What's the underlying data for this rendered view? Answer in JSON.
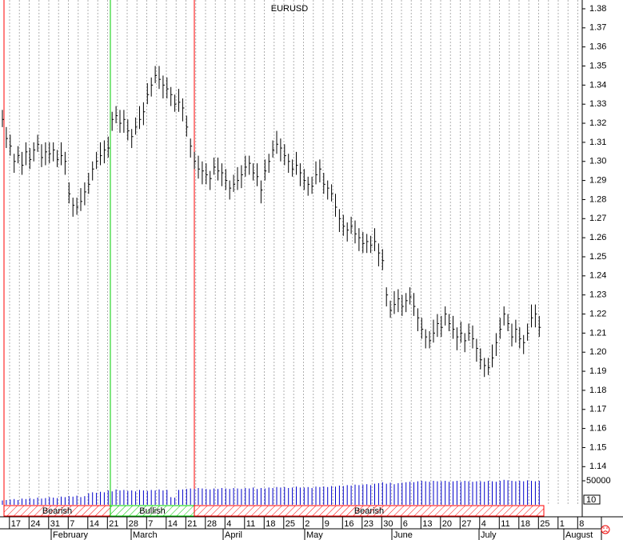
{
  "chart_data": {
    "type": "ohlc",
    "title": "EURUSD",
    "ylim": [
      1.12,
      1.3846
    ],
    "yticks": [
      1.14,
      1.15,
      1.16,
      1.17,
      1.18,
      1.19,
      {
        "value": 1.2,
        "label": "1.20"
      },
      1.21,
      1.22,
      1.23,
      1.24,
      1.25,
      1.26,
      1.27,
      1.28,
      1.29,
      {
        "value": 1.3,
        "label": "1.30"
      },
      1.31,
      1.32,
      1.33,
      1.34,
      1.35,
      1.36,
      1.37,
      1.38
    ],
    "y2lim": [
      0,
      60000
    ],
    "y2ticks": [
      50000
    ],
    "corner_label": "10",
    "bar_color": "#000000",
    "volume_color": "#0000cc",
    "regimes": [
      "Bearish",
      "Bullish",
      "Bearish"
    ],
    "regime_colors": [
      "#ff0000",
      "#00cc00",
      "#ff0000"
    ],
    "months": [
      "February",
      "March",
      "April",
      "May",
      "June",
      "July",
      "August"
    ],
    "categories": [
      null,
      null,
      "17",
      null,
      null,
      null,
      null,
      "24",
      null,
      null,
      null,
      null,
      "31",
      null,
      null,
      null,
      null,
      "7",
      null,
      null,
      null,
      null,
      "14",
      null,
      null,
      null,
      null,
      "21",
      null,
      null,
      null,
      null,
      "28",
      null,
      null,
      null,
      null,
      "7",
      null,
      null,
      null,
      null,
      "14",
      null,
      null,
      null,
      null,
      "21",
      null,
      null,
      null,
      null,
      "28",
      null,
      null,
      null,
      null,
      "4",
      null,
      null,
      null,
      null,
      "11",
      null,
      null,
      null,
      null,
      "18",
      null,
      null,
      null,
      null,
      "25",
      null,
      null,
      null,
      null,
      "2",
      null,
      null,
      null,
      null,
      "9",
      null,
      null,
      null,
      null,
      "16",
      null,
      null,
      null,
      null,
      "23",
      null,
      null,
      null,
      null,
      "30",
      null,
      null,
      null,
      null,
      "6",
      null,
      null,
      null,
      null,
      "13",
      null,
      null,
      null,
      null,
      "20",
      null,
      null,
      null,
      null,
      "27",
      null,
      null,
      null,
      null,
      "4",
      null,
      null,
      null,
      null,
      "11",
      null,
      null,
      null,
      null,
      "18",
      null,
      null,
      null,
      null,
      "25",
      null,
      null,
      null,
      null,
      "1",
      null,
      null,
      null,
      null,
      "8",
      null,
      null,
      null,
      null
    ],
    "high": [
      1.327,
      1.318,
      1.314,
      1.304,
      1.308,
      1.305,
      1.31,
      1.307,
      1.31,
      1.314,
      1.309,
      1.31,
      1.31,
      1.31,
      1.306,
      1.31,
      1.305,
      1.289,
      1.281,
      1.281,
      1.286,
      1.289,
      1.294,
      1.3,
      1.305,
      1.31,
      1.311,
      1.313,
      1.326,
      1.329,
      1.327,
      1.327,
      1.322,
      1.317,
      1.323,
      1.329,
      1.331,
      1.341,
      1.344,
      1.35,
      1.35,
      1.345,
      1.344,
      1.339,
      1.335,
      1.338,
      1.333,
      1.324,
      1.312,
      1.305,
      1.303,
      1.3,
      1.299,
      1.295,
      1.302,
      1.302,
      1.299,
      1.296,
      1.29,
      1.293,
      1.297,
      1.298,
      1.303,
      1.303,
      1.299,
      1.299,
      1.29,
      1.301,
      1.304,
      1.311,
      1.316,
      1.312,
      1.309,
      1.304,
      1.301,
      1.305,
      1.299,
      1.296,
      1.292,
      1.292,
      1.3,
      1.301,
      1.294,
      1.29,
      1.288,
      1.283,
      1.275,
      1.272,
      1.268,
      1.271,
      1.269,
      1.265,
      1.263,
      1.262,
      1.261,
      1.265,
      1.257,
      1.254,
      1.234,
      1.227,
      1.232,
      1.233,
      1.23,
      1.231,
      1.234,
      1.231,
      1.223,
      1.218,
      1.212,
      1.211,
      1.217,
      1.22,
      1.219,
      1.224,
      1.22,
      1.219,
      1.213,
      1.216,
      1.21,
      1.215,
      1.214,
      1.207,
      1.202,
      1.197,
      1.197,
      1.204,
      1.21,
      1.218,
      1.224,
      1.22,
      1.215,
      1.217,
      1.213,
      1.209,
      1.215,
      1.225,
      1.225,
      1.219,
      null,
      null,
      null,
      null,
      null,
      null,
      null,
      null,
      null,
      null,
      null,
      null,
      null,
      null
    ],
    "low": [
      1.318,
      1.307,
      1.303,
      1.294,
      1.299,
      1.293,
      1.298,
      1.296,
      1.3,
      1.305,
      1.297,
      1.298,
      1.299,
      1.3,
      1.297,
      1.298,
      1.293,
      1.278,
      1.271,
      1.272,
      1.274,
      1.277,
      1.283,
      1.29,
      1.296,
      1.298,
      1.299,
      1.302,
      1.316,
      1.32,
      1.315,
      1.315,
      1.311,
      1.307,
      1.314,
      1.317,
      1.319,
      1.33,
      1.334,
      1.341,
      1.338,
      1.333,
      1.333,
      1.329,
      1.326,
      1.326,
      1.321,
      1.313,
      1.302,
      1.296,
      1.291,
      1.288,
      1.288,
      1.285,
      1.293,
      1.29,
      1.287,
      1.285,
      1.28,
      1.284,
      1.285,
      1.286,
      1.292,
      1.293,
      1.29,
      1.287,
      1.278,
      1.29,
      1.294,
      1.302,
      1.304,
      1.3,
      1.298,
      1.294,
      1.292,
      1.293,
      1.287,
      1.285,
      1.282,
      1.283,
      1.288,
      1.289,
      1.283,
      1.28,
      1.279,
      1.271,
      1.263,
      1.261,
      1.258,
      1.262,
      1.257,
      1.253,
      1.252,
      1.252,
      1.252,
      1.253,
      1.245,
      1.243,
      1.224,
      1.218,
      1.22,
      1.221,
      1.219,
      1.221,
      1.225,
      1.219,
      1.211,
      1.207,
      1.202,
      1.202,
      1.205,
      1.208,
      1.208,
      1.214,
      1.211,
      1.207,
      1.201,
      1.205,
      1.2,
      1.206,
      1.202,
      1.195,
      1.191,
      1.187,
      1.188,
      1.192,
      1.198,
      1.207,
      1.214,
      1.211,
      1.203,
      1.205,
      1.202,
      1.199,
      1.206,
      1.213,
      1.213,
      1.208,
      null,
      null,
      null,
      null,
      null,
      null,
      null,
      null,
      null,
      null,
      null,
      null,
      null,
      null
    ],
    "close": [
      1.322,
      1.312,
      1.308,
      1.3,
      1.303,
      1.298,
      1.305,
      1.301,
      1.306,
      1.309,
      1.302,
      1.305,
      1.304,
      1.306,
      1.301,
      1.303,
      1.3,
      1.283,
      1.277,
      1.276,
      1.279,
      1.284,
      1.288,
      1.296,
      1.3,
      1.303,
      1.306,
      1.307,
      1.322,
      1.324,
      1.32,
      1.322,
      1.316,
      1.313,
      1.318,
      1.322,
      1.326,
      1.335,
      1.34,
      1.345,
      1.343,
      1.34,
      1.338,
      1.335,
      1.33,
      1.331,
      1.328,
      1.318,
      1.308,
      1.3,
      1.296,
      1.295,
      1.293,
      1.291,
      1.297,
      1.295,
      1.294,
      1.29,
      1.286,
      1.288,
      1.29,
      1.293,
      1.297,
      1.299,
      1.294,
      1.292,
      1.285,
      1.295,
      1.3,
      1.306,
      1.309,
      1.307,
      1.303,
      1.3,
      1.296,
      1.298,
      1.294,
      1.29,
      1.288,
      1.287,
      1.293,
      1.296,
      1.288,
      1.286,
      1.283,
      1.276,
      1.27,
      1.266,
      1.264,
      1.266,
      1.262,
      1.26,
      1.257,
      1.258,
      1.256,
      1.258,
      1.252,
      1.248,
      1.23,
      1.222,
      1.225,
      1.228,
      1.224,
      1.227,
      1.229,
      1.224,
      1.218,
      1.212,
      1.208,
      1.206,
      1.21,
      1.215,
      1.213,
      1.22,
      1.215,
      1.212,
      1.208,
      1.21,
      1.206,
      1.21,
      1.207,
      1.202,
      1.196,
      1.193,
      1.192,
      1.197,
      1.205,
      1.212,
      1.22,
      1.215,
      1.208,
      1.212,
      1.207,
      1.205,
      1.21,
      1.218,
      1.22,
      1.213,
      null,
      null,
      null,
      null,
      null,
      null,
      null,
      null,
      null,
      null,
      null,
      null,
      null,
      null
    ],
    "volume": [
      9000,
      10000,
      11000,
      12000,
      10000,
      13000,
      12000,
      14000,
      12000,
      15000,
      13000,
      14000,
      16000,
      15000,
      14000,
      17000,
      16000,
      18000,
      17000,
      19000,
      16000,
      18000,
      24000,
      26000,
      25000,
      27000,
      26000,
      30000,
      28000,
      32000,
      30000,
      31000,
      29000,
      30000,
      28000,
      31000,
      30000,
      29000,
      31000,
      30000,
      32000,
      30000,
      31000,
      16000,
      15000,
      31000,
      32000,
      33000,
      34000,
      33000,
      35000,
      34000,
      33000,
      32000,
      34000,
      33000,
      35000,
      34000,
      33000,
      35000,
      34000,
      33000,
      35000,
      34000,
      36000,
      33000,
      35000,
      34000,
      36000,
      35000,
      37000,
      36000,
      37000,
      35000,
      36000,
      38000,
      36000,
      36000,
      37000,
      35000,
      38000,
      37000,
      38000,
      37000,
      39000,
      38000,
      40000,
      39000,
      41000,
      40000,
      42000,
      41000,
      42000,
      43000,
      41000,
      44000,
      45000,
      47000,
      44000,
      46000,
      43000,
      45000,
      46000,
      47000,
      48000,
      47000,
      49000,
      50000,
      49000,
      48000,
      50000,
      49000,
      49000,
      50000,
      48000,
      49000,
      50000,
      48000,
      50000,
      49000,
      48000,
      49000,
      49000,
      48000,
      50000,
      49000,
      48000,
      50000,
      52000,
      51000,
      50000,
      49000,
      50000,
      49000,
      51000,
      50000,
      49000,
      50000,
      null,
      null,
      null,
      null,
      null,
      null,
      null,
      null,
      null,
      null,
      null,
      null,
      null,
      null
    ]
  }
}
